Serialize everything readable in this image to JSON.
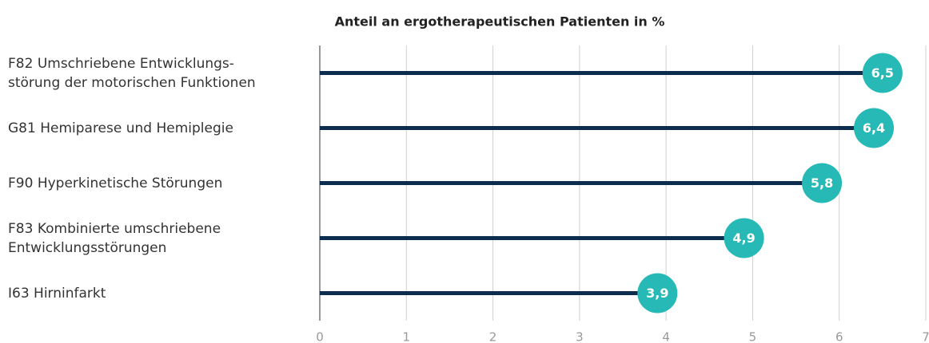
{
  "chart_data": {
    "type": "lollipop",
    "title": "Anteil an ergotherapeutischen Patienten in %",
    "categories": [
      "F82 Umschriebene Entwicklungs-\nstörung der motorischen Funktionen",
      "G81 Hemiparese und Hemiplegie",
      "F90 Hyperkinetische Störungen",
      "F83 Kombinierte umschriebene\nEntwicklungsstörungen",
      "I63 Hirninfarkt"
    ],
    "values": [
      6.5,
      6.4,
      5.8,
      4.9,
      3.9
    ],
    "value_labels": [
      "6,5",
      "6,4",
      "5,8",
      "4,9",
      "3,9"
    ],
    "color": "#0d2d4f",
    "marker_color": "#26b9b5",
    "xlim": [
      0,
      7
    ],
    "xticks": [
      0,
      1,
      2,
      3,
      4,
      5,
      6,
      7
    ],
    "grid": true
  }
}
